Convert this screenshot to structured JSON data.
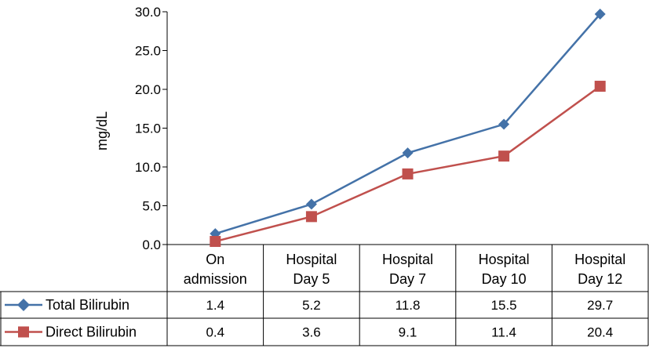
{
  "chart_data": {
    "type": "line",
    "ylabel": "mg/dL",
    "ylim": [
      0,
      30
    ],
    "yticks": [
      "0.0",
      "5.0",
      "10.0",
      "15.0",
      "20.0",
      "25.0",
      "30.0"
    ],
    "categories": [
      [
        "On",
        "admission"
      ],
      [
        "Hospital",
        "Day 5"
      ],
      [
        "Hospital",
        "Day 7"
      ],
      [
        "Hospital",
        "Day 10"
      ],
      [
        "Hospital",
        "Day 12"
      ]
    ],
    "series": [
      {
        "name": "Total Bilirubin",
        "color": "#4472A8",
        "marker": "diamond",
        "values": [
          1.4,
          5.2,
          11.8,
          15.5,
          29.7
        ],
        "labels": [
          "1.4",
          "5.2",
          "11.8",
          "15.5",
          "29.7"
        ]
      },
      {
        "name": "Direct Bilirubin",
        "color": "#C0504D",
        "marker": "square",
        "values": [
          0.4,
          3.6,
          9.1,
          11.4,
          20.4
        ],
        "labels": [
          "0.4",
          "3.6",
          "9.1",
          "11.4",
          "20.4"
        ]
      }
    ],
    "data_table": true,
    "grid": false
  }
}
